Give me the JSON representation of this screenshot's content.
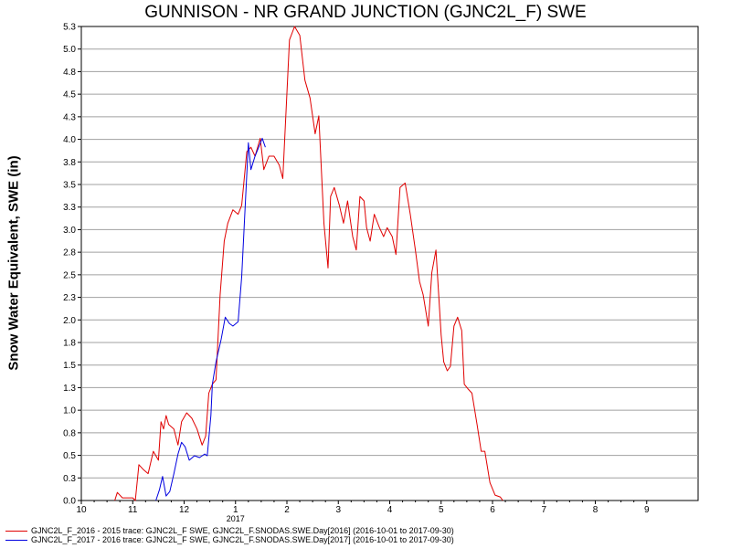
{
  "chart_data": {
    "type": "line",
    "title": "GUNNISON - NR GRAND JUNCTION (GJNC2L_F) SWE",
    "ylabel": "Snow Water Equivalent, SWE (in)",
    "xlabel": "",
    "x_unit": "month (Oct 2016 - Sep 2017)",
    "xlim": [
      0,
      12
    ],
    "ylim": [
      0.0,
      5.3
    ],
    "x_ticks": [
      "10",
      "11",
      "12",
      "1",
      "2",
      "3",
      "4",
      "5",
      "6",
      "7",
      "8",
      "9"
    ],
    "x_year_label": "2017",
    "y_ticks": [
      "0.0",
      "0.3",
      "0.5",
      "0.8",
      "1.0",
      "1.3",
      "1.5",
      "1.8",
      "2.0",
      "2.3",
      "2.5",
      "2.8",
      "3.0",
      "3.3",
      "3.5",
      "3.8",
      "4.0",
      "4.3",
      "4.5",
      "4.8",
      "5.0",
      "5.3"
    ],
    "grid": true,
    "legend_position": "bottom",
    "series": [
      {
        "name": "GJNC2L_F_2016 - 2015 trace: GJNC2L_F SWE, GJNC2L_F.SNODAS.SWE.Day[2016] (2016-10-01 to 2017-09-30)",
        "color": "#e00000",
        "points": [
          [
            0.65,
            0
          ],
          [
            0.7,
            0.09
          ],
          [
            0.8,
            0.03
          ],
          [
            1.0,
            0.03
          ],
          [
            1.05,
            0
          ],
          [
            1.12,
            0.4
          ],
          [
            1.2,
            0.35
          ],
          [
            1.3,
            0.3
          ],
          [
            1.4,
            0.55
          ],
          [
            1.5,
            0.45
          ],
          [
            1.55,
            0.88
          ],
          [
            1.6,
            0.8
          ],
          [
            1.65,
            0.95
          ],
          [
            1.7,
            0.85
          ],
          [
            1.8,
            0.8
          ],
          [
            1.88,
            0.62
          ],
          [
            1.95,
            0.88
          ],
          [
            2.05,
            0.98
          ],
          [
            2.15,
            0.92
          ],
          [
            2.25,
            0.8
          ],
          [
            2.35,
            0.62
          ],
          [
            2.42,
            0.72
          ],
          [
            2.48,
            1.2
          ],
          [
            2.55,
            1.3
          ],
          [
            2.62,
            1.35
          ],
          [
            2.7,
            2.3
          ],
          [
            2.78,
            2.9
          ],
          [
            2.85,
            3.1
          ],
          [
            2.95,
            3.25
          ],
          [
            3.05,
            3.2
          ],
          [
            3.12,
            3.3
          ],
          [
            3.22,
            3.9
          ],
          [
            3.3,
            3.95
          ],
          [
            3.38,
            3.85
          ],
          [
            3.48,
            4.05
          ],
          [
            3.55,
            3.7
          ],
          [
            3.65,
            3.85
          ],
          [
            3.75,
            3.85
          ],
          [
            3.85,
            3.75
          ],
          [
            3.92,
            3.6
          ],
          [
            4.05,
            5.15
          ],
          [
            4.15,
            5.3
          ],
          [
            4.25,
            5.2
          ],
          [
            4.35,
            4.7
          ],
          [
            4.45,
            4.5
          ],
          [
            4.55,
            4.1
          ],
          [
            4.62,
            4.3
          ],
          [
            4.72,
            3.1
          ],
          [
            4.8,
            2.6
          ],
          [
            4.85,
            3.4
          ],
          [
            4.92,
            3.5
          ],
          [
            5.02,
            3.3
          ],
          [
            5.1,
            3.1
          ],
          [
            5.18,
            3.35
          ],
          [
            5.28,
            2.95
          ],
          [
            5.35,
            2.8
          ],
          [
            5.42,
            3.4
          ],
          [
            5.5,
            3.35
          ],
          [
            5.55,
            3.05
          ],
          [
            5.62,
            2.9
          ],
          [
            5.7,
            3.2
          ],
          [
            5.8,
            3.05
          ],
          [
            5.88,
            2.95
          ],
          [
            5.95,
            3.05
          ],
          [
            6.05,
            2.95
          ],
          [
            6.12,
            2.75
          ],
          [
            6.2,
            3.5
          ],
          [
            6.3,
            3.55
          ],
          [
            6.4,
            3.2
          ],
          [
            6.5,
            2.8
          ],
          [
            6.58,
            2.45
          ],
          [
            6.65,
            2.3
          ],
          [
            6.75,
            1.95
          ],
          [
            6.82,
            2.55
          ],
          [
            6.9,
            2.8
          ],
          [
            7.0,
            1.85
          ],
          [
            7.05,
            1.55
          ],
          [
            7.12,
            1.45
          ],
          [
            7.18,
            1.5
          ],
          [
            7.25,
            1.95
          ],
          [
            7.32,
            2.05
          ],
          [
            7.4,
            1.9
          ],
          [
            7.45,
            1.3
          ],
          [
            7.52,
            1.25
          ],
          [
            7.6,
            1.2
          ],
          [
            7.7,
            0.85
          ],
          [
            7.78,
            0.55
          ],
          [
            7.85,
            0.55
          ],
          [
            7.95,
            0.2
          ],
          [
            8.05,
            0.06
          ],
          [
            8.15,
            0.04
          ],
          [
            8.2,
            0
          ]
        ]
      },
      {
        "name": "GJNC2L_F_2017 - 2016 trace: GJNC2L_F SWE, GJNC2L_F.SNODAS.SWE.Day[2017] (2016-10-01 to 2017-09-30)",
        "color": "#0000e0",
        "points": [
          [
            1.45,
            0
          ],
          [
            1.52,
            0.12
          ],
          [
            1.58,
            0.27
          ],
          [
            1.65,
            0.05
          ],
          [
            1.72,
            0.1
          ],
          [
            1.8,
            0.3
          ],
          [
            1.88,
            0.52
          ],
          [
            1.95,
            0.65
          ],
          [
            2.02,
            0.6
          ],
          [
            2.1,
            0.45
          ],
          [
            2.2,
            0.5
          ],
          [
            2.3,
            0.48
          ],
          [
            2.4,
            0.52
          ],
          [
            2.45,
            0.5
          ],
          [
            2.52,
            0.95
          ],
          [
            2.55,
            1.3
          ],
          [
            2.62,
            1.55
          ],
          [
            2.72,
            1.8
          ],
          [
            2.8,
            2.05
          ],
          [
            2.88,
            1.98
          ],
          [
            2.95,
            1.95
          ],
          [
            3.05,
            2.0
          ],
          [
            3.12,
            2.5
          ],
          [
            3.18,
            3.2
          ],
          [
            3.25,
            4.0
          ],
          [
            3.3,
            3.7
          ],
          [
            3.38,
            3.85
          ],
          [
            3.45,
            3.95
          ],
          [
            3.52,
            4.05
          ],
          [
            3.58,
            3.95
          ]
        ]
      }
    ]
  }
}
